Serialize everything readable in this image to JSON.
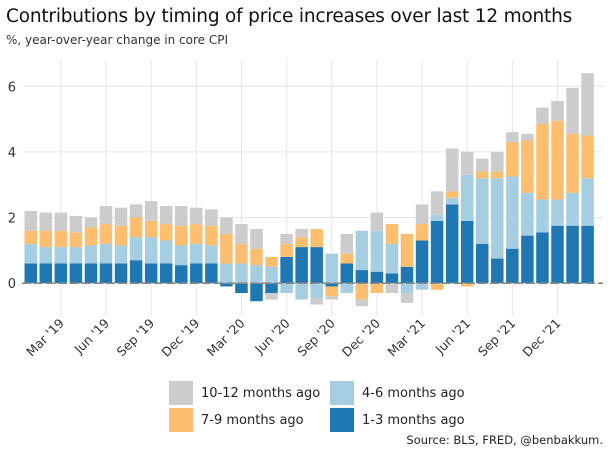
{
  "title": "Contributions by timing of price increases over last 12 months",
  "subtitle": "%, year-over-year change in core CPI",
  "source": "Source: BLS, FRED, @benbakkum.",
  "colors": {
    "c1": "#1f78b4",
    "c2": "#a6cee3",
    "c3": "#fdbf6f",
    "c4": "#cccccc",
    "zero": "#888888"
  },
  "chart_data": {
    "type": "bar",
    "stacked": true,
    "ylim": [
      -1,
      6.8
    ],
    "yticks": [
      0,
      2,
      4,
      6
    ],
    "grid": true,
    "legend_position": "bottom",
    "xtick_labels": [
      "Mar '19",
      "Jun '19",
      "Sep '19",
      "Dec '19",
      "Mar '20",
      "Jun '20",
      "Sep '20",
      "Dec '20",
      "Mar '21",
      "Jun '21",
      "Sep '21",
      "Dec '21"
    ],
    "xtick_bar_index": [
      2,
      5,
      8,
      11,
      14,
      17,
      20,
      23,
      26,
      29,
      32,
      35
    ],
    "series": [
      {
        "name": "1-3 months ago",
        "color": "#1f78b4",
        "values": [
          0.6,
          0.6,
          0.6,
          0.6,
          0.6,
          0.6,
          0.6,
          0.7,
          0.6,
          0.6,
          0.55,
          0.6,
          0.6,
          -0.1,
          -0.3,
          -0.55,
          -0.3,
          0.8,
          1.1,
          1.1,
          -0.1,
          0.6,
          0.4,
          0.35,
          0.3,
          0.5,
          1.3,
          1.9,
          2.4,
          1.9,
          1.2,
          0.75,
          1.05,
          1.45,
          1.55,
          1.75,
          1.75,
          1.75
        ]
      },
      {
        "name": "4-6 months ago",
        "color": "#a6cee3",
        "values": [
          0.6,
          0.5,
          0.5,
          0.5,
          0.55,
          0.6,
          0.55,
          0.7,
          0.8,
          0.7,
          0.6,
          0.6,
          0.55,
          0.6,
          0.6,
          0.55,
          0.5,
          -0.3,
          -0.5,
          -0.45,
          0.9,
          -0.3,
          1.2,
          1.25,
          0.9,
          -0.3,
          -0.2,
          0.2,
          0.2,
          1.4,
          2.0,
          2.45,
          2.2,
          1.3,
          1.0,
          0.8,
          1.0,
          1.45
        ]
      },
      {
        "name": "7-9 months ago",
        "color": "#fdbf6f",
        "values": [
          0.4,
          0.5,
          0.5,
          0.45,
          0.55,
          0.6,
          0.6,
          0.6,
          0.5,
          0.5,
          0.6,
          0.6,
          0.6,
          0.9,
          0.6,
          0.5,
          0.3,
          0.4,
          0.3,
          0.55,
          -0.3,
          0.3,
          -0.5,
          -0.3,
          0.6,
          1.0,
          0.5,
          -0.2,
          0.2,
          -0.1,
          0.2,
          0.2,
          1.05,
          1.6,
          2.3,
          2.4,
          1.8,
          1.3
        ]
      },
      {
        "name": "10-12 months ago",
        "color": "#cccccc",
        "values": [
          0.6,
          0.55,
          0.55,
          0.5,
          0.3,
          0.55,
          0.55,
          0.4,
          0.6,
          0.55,
          0.6,
          0.5,
          0.5,
          0.5,
          0.6,
          0.6,
          -0.2,
          0.3,
          0.25,
          -0.2,
          -0.1,
          0.6,
          -0.2,
          0.55,
          -0.3,
          -0.3,
          0.6,
          0.7,
          1.3,
          0.7,
          0.4,
          0.6,
          0.3,
          0.2,
          0.5,
          0.6,
          1.4,
          1.9
        ]
      }
    ]
  },
  "legend": [
    {
      "label": "10-12 months ago",
      "color": "#cccccc"
    },
    {
      "label": "4-6 months ago",
      "color": "#a6cee3"
    },
    {
      "label": "7-9 months ago",
      "color": "#fdbf6f"
    },
    {
      "label": "1-3 months ago",
      "color": "#1f78b4"
    }
  ]
}
